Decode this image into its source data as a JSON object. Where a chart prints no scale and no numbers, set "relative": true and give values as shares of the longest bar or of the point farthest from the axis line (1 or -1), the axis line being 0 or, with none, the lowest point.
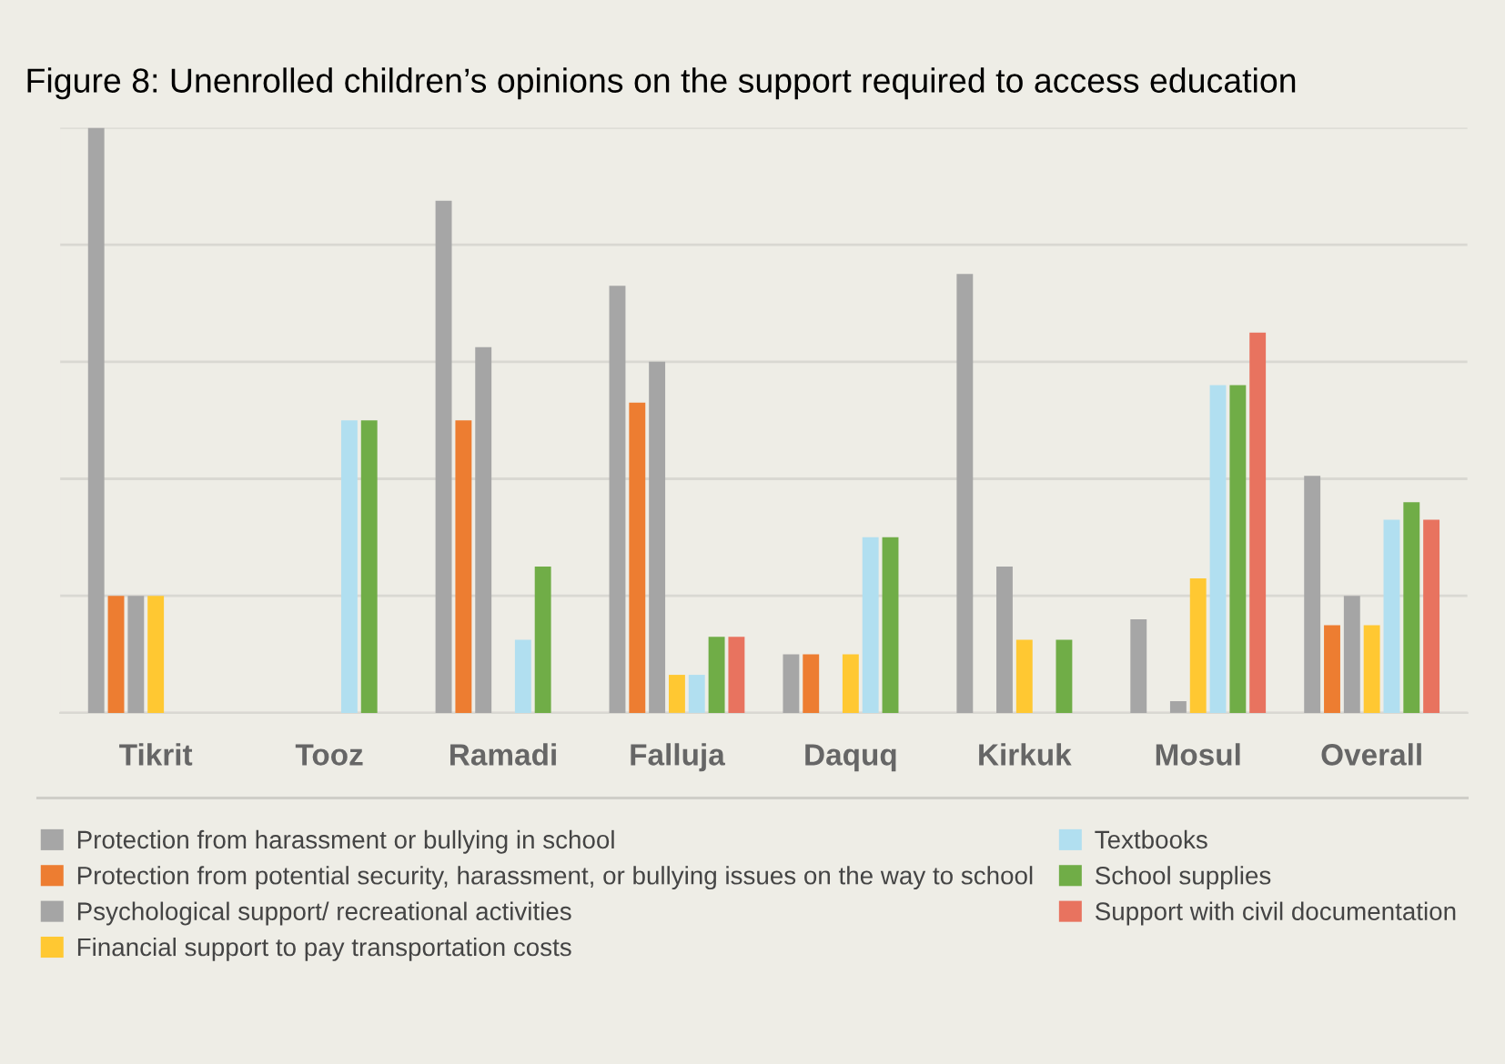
{
  "chart_data": {
    "type": "bar",
    "title": "Figure 8: Unenrolled children’s opinions on the support required to access education",
    "categories": [
      "Tikrit",
      "Tooz",
      "Ramadi",
      "Falluja",
      "Daquq",
      "Kirkuk",
      "Mosul",
      "Overall"
    ],
    "relative": true,
    "grid": "y",
    "legend": "bottom",
    "series": [
      {
        "name": "Protection from harassment or bullying in school",
        "color": "#a6a6a6",
        "values": [
          1.0,
          null,
          0.875,
          0.73,
          0.1,
          0.75,
          0.16,
          0.405
        ]
      },
      {
        "name": "Protection from potential security, harassment, or bullying issues on the way to school",
        "color": "#ed7d31",
        "values": [
          0.2,
          null,
          0.5,
          0.53,
          0.1,
          null,
          null,
          0.15
        ]
      },
      {
        "name": "Psychological support/ recreational activities",
        "color": "#a5a5a5",
        "values": [
          0.2,
          null,
          0.625,
          0.6,
          null,
          0.25,
          0.02,
          0.2
        ]
      },
      {
        "name": "Financial support to pay transportation costs",
        "color": "#ffc832",
        "values": [
          0.2,
          null,
          null,
          0.065,
          0.1,
          0.125,
          0.23,
          0.15
        ]
      },
      {
        "name": "Textbooks",
        "color": "#b1dff0",
        "values": [
          null,
          0.5,
          0.125,
          0.065,
          0.3,
          null,
          0.56,
          0.33
        ]
      },
      {
        "name": "School supplies",
        "color": "#70ad47",
        "values": [
          null,
          0.5,
          0.25,
          0.13,
          0.3,
          0.125,
          0.56,
          0.36
        ]
      },
      {
        "name": "Support with civil documentation",
        "color": "#e8735f",
        "values": [
          null,
          null,
          null,
          0.13,
          null,
          null,
          0.65,
          0.33
        ]
      }
    ]
  }
}
